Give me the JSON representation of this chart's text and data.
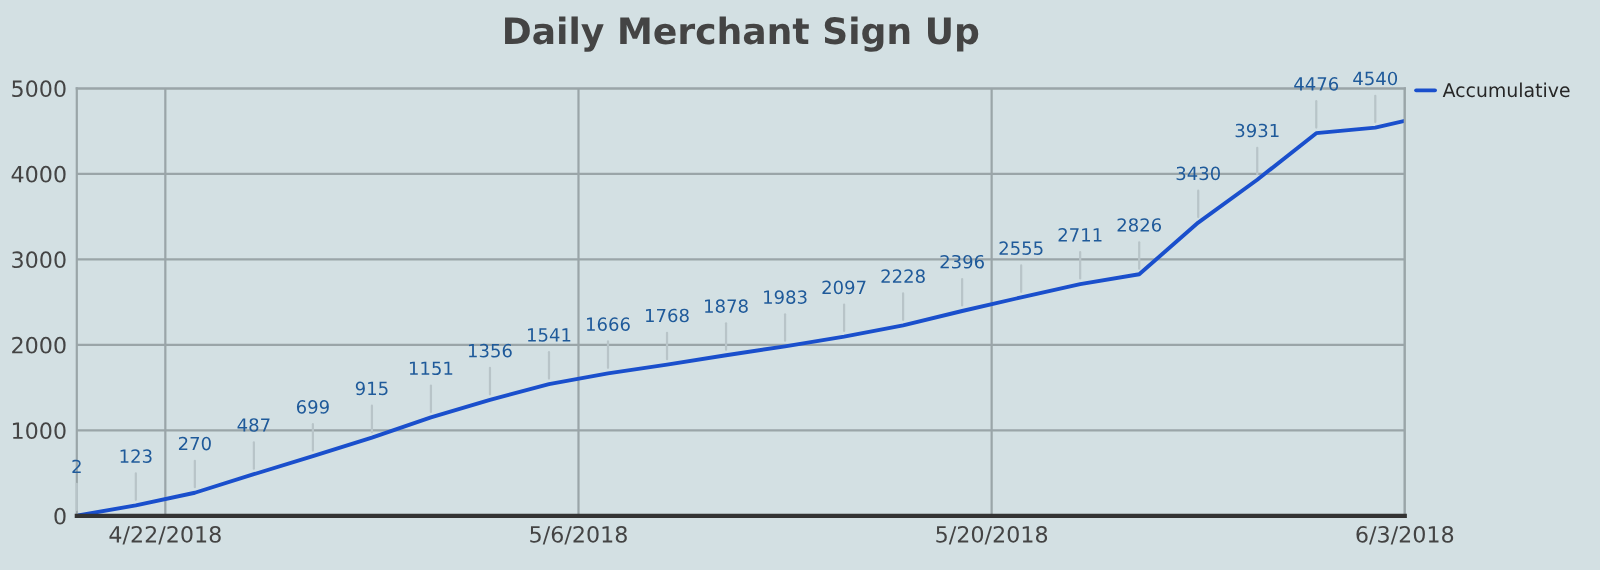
{
  "chart_data": {
    "type": "line",
    "title": "Daily Merchant Sign Up",
    "x": [
      "2018-04-19",
      "2018-04-21",
      "2018-04-23",
      "2018-04-25",
      "2018-04-27",
      "2018-04-29",
      "2018-05-01",
      "2018-05-03",
      "2018-05-05",
      "2018-05-07",
      "2018-05-09",
      "2018-05-11",
      "2018-05-13",
      "2018-05-15",
      "2018-05-17",
      "2018-05-19",
      "2018-05-21",
      "2018-05-23",
      "2018-05-25",
      "2018-05-27",
      "2018-05-29",
      "2018-05-31",
      "2018-06-02",
      "2018-06-03"
    ],
    "series": [
      {
        "name": "Accumulative",
        "color": "#1a4fcc",
        "values": [
          2,
          123,
          270,
          487,
          699,
          915,
          1151,
          1356,
          1541,
          1666,
          1768,
          1878,
          1983,
          2097,
          2228,
          2396,
          2555,
          2711,
          2826,
          3430,
          3931,
          4476,
          4540,
          4620
        ],
        "value_labels": [
          "2",
          "123",
          "270",
          "487",
          "699",
          "915",
          "1151",
          "1356",
          "1541",
          "1666",
          "1768",
          "1878",
          "1983",
          "2097",
          "2228",
          "2396",
          "2555",
          "2711",
          "2826",
          "3430",
          "3931",
          "4476",
          "4540",
          null
        ]
      }
    ],
    "xlim": [
      "2018-04-19",
      "2018-06-03"
    ],
    "xticks": [
      {
        "value": "2018-04-22",
        "label": "4/22/2018"
      },
      {
        "value": "2018-05-06",
        "label": "5/6/2018"
      },
      {
        "value": "2018-05-20",
        "label": "5/20/2018"
      },
      {
        "value": "2018-06-03",
        "label": "6/3/2018"
      }
    ],
    "ylim": [
      0,
      5000
    ],
    "yticks": [
      0,
      1000,
      2000,
      3000,
      4000,
      5000
    ],
    "grid": true,
    "legend": "top right",
    "marker": "none",
    "line_style": "solid"
  }
}
